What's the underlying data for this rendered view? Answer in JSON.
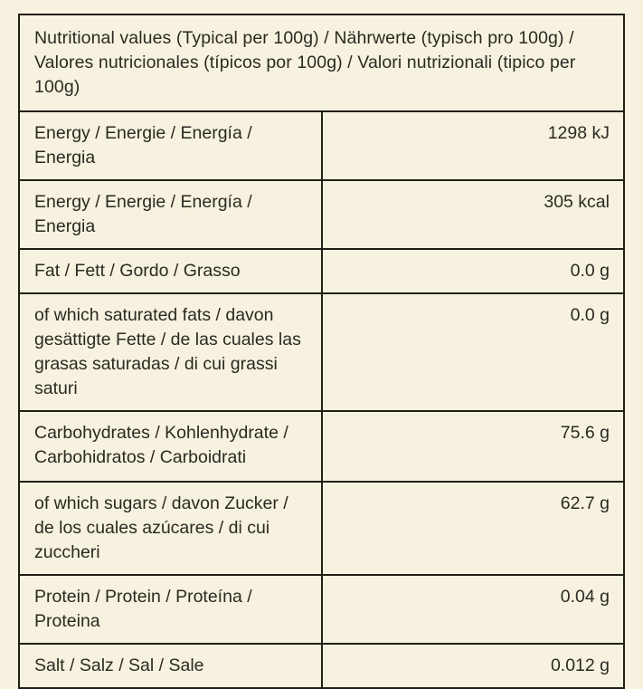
{
  "page": {
    "background_color": "#f6f2df",
    "border_color": "#211f15",
    "text_color": "#2b2922"
  },
  "table": {
    "header": "Nutritional values (Typical per 100g) / Nährwerte (typisch pro 100g) / Valores nutricionales (típicos por 100g) / Valori nutrizionali (tipico per 100g)",
    "rows": [
      {
        "label": "Energy / Energie / Energía / Energia",
        "value": "1298 kJ"
      },
      {
        "label": "Energy / Energie / Energía / Energia",
        "value": "305 kcal"
      },
      {
        "label": "Fat / Fett / Gordo / Grasso",
        "value": "0.0 g"
      },
      {
        "label": "of which saturated fats / davon gesättigte Fette / de las cuales las grasas saturadas / di cui grassi saturi",
        "value": "0.0 g"
      },
      {
        "label": "Carbohydrates / Kohlenhydrate / Carbohidratos / Carboidrati",
        "value": "75.6 g"
      },
      {
        "label": "of which sugars / davon Zucker / de los cuales azúcares / di cui zuccheri",
        "value": "62.7 g"
      },
      {
        "label": "Protein / Protein / Proteína / Proteina",
        "value": "0.04 g"
      },
      {
        "label": "Salt / Salz / Sal / Sale",
        "value": "0.012 g"
      }
    ]
  }
}
